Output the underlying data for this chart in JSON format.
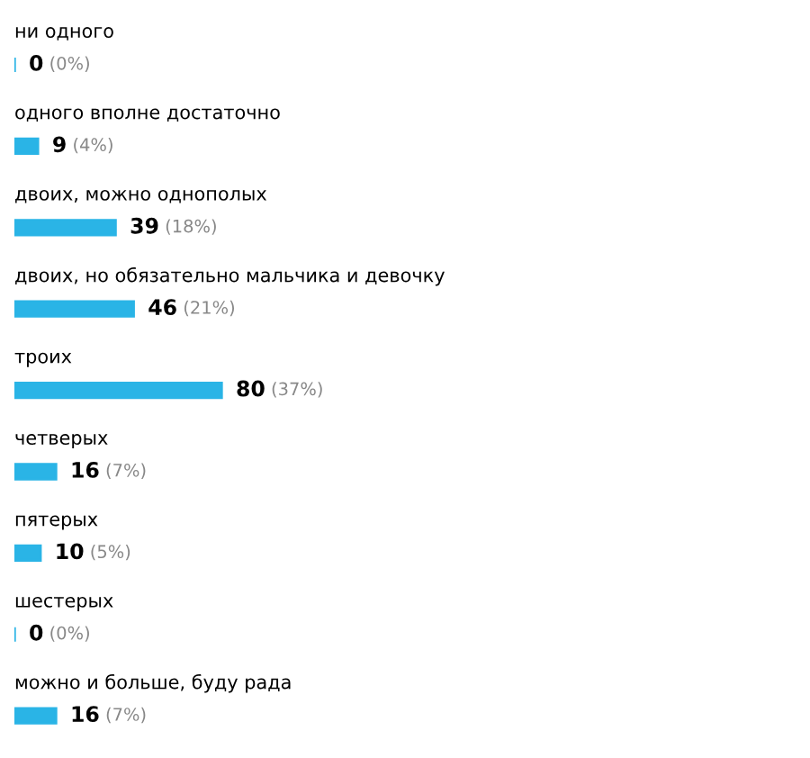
{
  "chart_data": {
    "type": "bar",
    "orientation": "horizontal",
    "categories": [
      "ни одного",
      "одного вполне достаточно",
      "двоих, можно однополых",
      "двоих, но обязательно мальчика и девочку",
      "троих",
      "четверых",
      "пятерых",
      "шестерых",
      "можно и больше, буду рада"
    ],
    "values": [
      0,
      9,
      39,
      46,
      80,
      16,
      10,
      0,
      16
    ],
    "value_labels": [
      "0 (0%)",
      "9 (4%)",
      "39 (18%)",
      "46 (21%)",
      "80 (37%)",
      "16 (7%)",
      "10 (5%)",
      "0 (0%)",
      "16 (7%)"
    ],
    "color": "#2ab4e6"
  }
}
